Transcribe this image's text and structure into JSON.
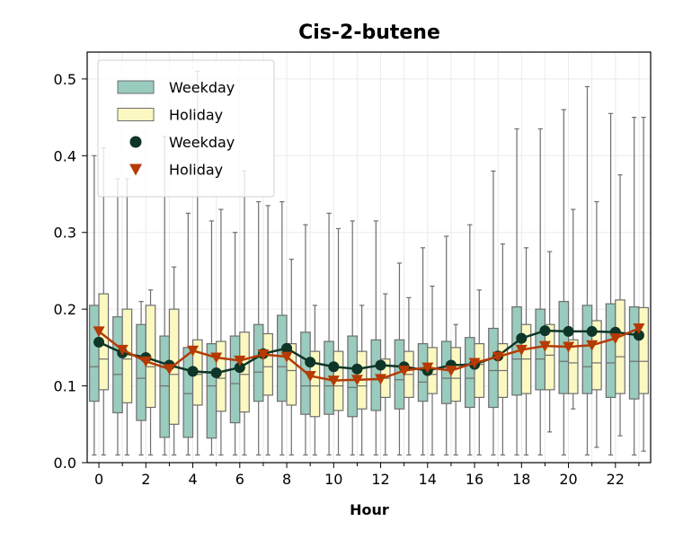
{
  "chart_data": {
    "type": "box",
    "title": "Cis-2-butene",
    "xlabel": "Hour",
    "ylabel": "",
    "xlim": [
      -0.5,
      23.5
    ],
    "ylim": [
      0,
      0.535
    ],
    "x_ticks": [
      0,
      2,
      4,
      6,
      8,
      10,
      12,
      14,
      16,
      18,
      20,
      22
    ],
    "x_tick_labels": [
      "0",
      "2",
      "4",
      "6",
      "8",
      "10",
      "12",
      "14",
      "16",
      "18",
      "20",
      "22"
    ],
    "y_ticks": [
      0.0,
      0.1,
      0.2,
      0.3,
      0.4,
      0.5
    ],
    "y_tick_labels": [
      "0.0",
      "0.1",
      "0.2",
      "0.3",
      "0.4",
      "0.5"
    ],
    "grid": true,
    "legend_position": "top-left",
    "colors": {
      "weekday_box": "#99cbbe",
      "holiday_box": "#fbf9c1",
      "weekday_line": "#0e3527",
      "holiday_line": "#b53a04",
      "box_edge": "#6e6e6e"
    },
    "hours": [
      0,
      1,
      2,
      3,
      4,
      5,
      6,
      7,
      8,
      9,
      10,
      11,
      12,
      13,
      14,
      15,
      16,
      17,
      18,
      19,
      20,
      21,
      22,
      23
    ],
    "box_series": [
      {
        "name": "Weekday",
        "boxes": [
          {
            "wl": 0.01,
            "q1": 0.08,
            "med": 0.125,
            "q3": 0.205,
            "wh": 0.4
          },
          {
            "wl": 0.01,
            "q1": 0.065,
            "med": 0.115,
            "q3": 0.19,
            "wh": 0.37
          },
          {
            "wl": 0.01,
            "q1": 0.055,
            "med": 0.11,
            "q3": 0.18,
            "wh": 0.21
          },
          {
            "wl": 0.01,
            "q1": 0.033,
            "med": 0.1,
            "q3": 0.165,
            "wh": 0.425
          },
          {
            "wl": 0.01,
            "q1": 0.033,
            "med": 0.09,
            "q3": 0.15,
            "wh": 0.325
          },
          {
            "wl": 0.01,
            "q1": 0.032,
            "med": 0.1,
            "q3": 0.155,
            "wh": 0.315
          },
          {
            "wl": 0.01,
            "q1": 0.052,
            "med": 0.103,
            "q3": 0.165,
            "wh": 0.3
          },
          {
            "wl": 0.01,
            "q1": 0.08,
            "med": 0.118,
            "q3": 0.18,
            "wh": 0.34
          },
          {
            "wl": 0.01,
            "q1": 0.08,
            "med": 0.125,
            "q3": 0.192,
            "wh": 0.34
          },
          {
            "wl": 0.01,
            "q1": 0.063,
            "med": 0.1,
            "q3": 0.17,
            "wh": 0.31
          },
          {
            "wl": 0.01,
            "q1": 0.063,
            "med": 0.1,
            "q3": 0.158,
            "wh": 0.325
          },
          {
            "wl": 0.01,
            "q1": 0.06,
            "med": 0.098,
            "q3": 0.165,
            "wh": 0.315
          },
          {
            "wl": 0.01,
            "q1": 0.068,
            "med": 0.108,
            "q3": 0.16,
            "wh": 0.315
          },
          {
            "wl": 0.01,
            "q1": 0.07,
            "med": 0.108,
            "q3": 0.16,
            "wh": 0.26
          },
          {
            "wl": 0.01,
            "q1": 0.08,
            "med": 0.105,
            "q3": 0.155,
            "wh": 0.28
          },
          {
            "wl": 0.01,
            "q1": 0.077,
            "med": 0.11,
            "q3": 0.158,
            "wh": 0.295
          },
          {
            "wl": 0.01,
            "q1": 0.072,
            "med": 0.11,
            "q3": 0.163,
            "wh": 0.31
          },
          {
            "wl": 0.01,
            "q1": 0.072,
            "med": 0.12,
            "q3": 0.175,
            "wh": 0.38
          },
          {
            "wl": 0.01,
            "q1": 0.088,
            "med": 0.135,
            "q3": 0.203,
            "wh": 0.435
          },
          {
            "wl": 0.01,
            "q1": 0.095,
            "med": 0.135,
            "q3": 0.2,
            "wh": 0.435
          },
          {
            "wl": 0.01,
            "q1": 0.09,
            "med": 0.132,
            "q3": 0.21,
            "wh": 0.46
          },
          {
            "wl": 0.01,
            "q1": 0.09,
            "med": 0.125,
            "q3": 0.205,
            "wh": 0.49
          },
          {
            "wl": 0.01,
            "q1": 0.085,
            "med": 0.13,
            "q3": 0.207,
            "wh": 0.455
          },
          {
            "wl": 0.01,
            "q1": 0.083,
            "med": 0.132,
            "q3": 0.203,
            "wh": 0.45
          }
        ]
      },
      {
        "name": "Holiday",
        "boxes": [
          {
            "wl": 0.01,
            "q1": 0.095,
            "med": 0.135,
            "q3": 0.22,
            "wh": 0.41
          },
          {
            "wl": 0.01,
            "q1": 0.078,
            "med": 0.135,
            "q3": 0.2,
            "wh": 0.37
          },
          {
            "wl": 0.01,
            "q1": 0.072,
            "med": 0.125,
            "q3": 0.205,
            "wh": 0.225
          },
          {
            "wl": 0.01,
            "q1": 0.05,
            "med": 0.115,
            "q3": 0.2,
            "wh": 0.255
          },
          {
            "wl": 0.01,
            "q1": 0.075,
            "med": 0.115,
            "q3": 0.16,
            "wh": 0.51
          },
          {
            "wl": 0.01,
            "q1": 0.067,
            "med": 0.11,
            "q3": 0.158,
            "wh": 0.33
          },
          {
            "wl": 0.01,
            "q1": 0.066,
            "med": 0.115,
            "q3": 0.17,
            "wh": 0.38
          },
          {
            "wl": 0.01,
            "q1": 0.088,
            "med": 0.125,
            "q3": 0.168,
            "wh": 0.335
          },
          {
            "wl": 0.01,
            "q1": 0.075,
            "med": 0.12,
            "q3": 0.155,
            "wh": 0.265
          },
          {
            "wl": 0.01,
            "q1": 0.06,
            "med": 0.1,
            "q3": 0.145,
            "wh": 0.205
          },
          {
            "wl": 0.01,
            "q1": 0.068,
            "med": 0.1,
            "q3": 0.145,
            "wh": 0.305
          },
          {
            "wl": 0.01,
            "q1": 0.07,
            "med": 0.1,
            "q3": 0.145,
            "wh": 0.205
          },
          {
            "wl": 0.01,
            "q1": 0.085,
            "med": 0.11,
            "q3": 0.135,
            "wh": 0.22
          },
          {
            "wl": 0.01,
            "q1": 0.085,
            "med": 0.115,
            "q3": 0.145,
            "wh": 0.215
          },
          {
            "wl": 0.01,
            "q1": 0.09,
            "med": 0.115,
            "q3": 0.15,
            "wh": 0.23
          },
          {
            "wl": 0.01,
            "q1": 0.08,
            "med": 0.11,
            "q3": 0.15,
            "wh": 0.18
          },
          {
            "wl": 0.01,
            "q1": 0.085,
            "med": 0.128,
            "q3": 0.155,
            "wh": 0.225
          },
          {
            "wl": 0.01,
            "q1": 0.085,
            "med": 0.12,
            "q3": 0.155,
            "wh": 0.285
          },
          {
            "wl": 0.01,
            "q1": 0.09,
            "med": 0.135,
            "q3": 0.18,
            "wh": 0.28
          },
          {
            "wl": 0.04,
            "q1": 0.095,
            "med": 0.14,
            "q3": 0.18,
            "wh": 0.275
          },
          {
            "wl": 0.07,
            "q1": 0.09,
            "med": 0.13,
            "q3": 0.16,
            "wh": 0.33
          },
          {
            "wl": 0.02,
            "q1": 0.095,
            "med": 0.13,
            "q3": 0.185,
            "wh": 0.34
          },
          {
            "wl": 0.035,
            "q1": 0.09,
            "med": 0.138,
            "q3": 0.212,
            "wh": 0.375
          },
          {
            "wl": 0.015,
            "q1": 0.09,
            "med": 0.132,
            "q3": 0.202,
            "wh": 0.45
          }
        ]
      }
    ],
    "line_series": [
      {
        "name": "Weekday",
        "marker": "circle",
        "values": [
          0.157,
          0.143,
          0.137,
          0.127,
          0.119,
          0.117,
          0.124,
          0.142,
          0.149,
          0.131,
          0.125,
          0.122,
          0.127,
          0.125,
          0.12,
          0.127,
          0.128,
          0.139,
          0.162,
          0.172,
          0.171,
          0.171,
          0.17,
          0.166
        ]
      },
      {
        "name": "Holiday",
        "marker": "triangle-down",
        "values": [
          0.171,
          0.147,
          0.132,
          0.122,
          0.146,
          0.137,
          0.133,
          0.141,
          0.138,
          0.113,
          0.107,
          0.108,
          0.109,
          0.12,
          0.124,
          0.12,
          0.13,
          0.138,
          0.147,
          0.152,
          0.151,
          0.153,
          0.162,
          0.175
        ]
      }
    ]
  }
}
